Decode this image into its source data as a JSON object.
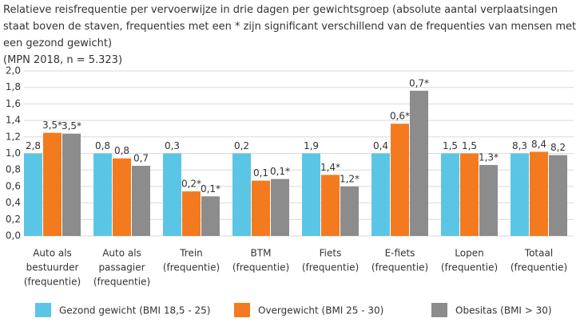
{
  "chart_data": {
    "type": "bar",
    "title": "Relatieve reisfrequentie per vervoerwijze in drie dagen per gewichtsgroep (absolute aantal verplaatsingen staat boven de staven, frequenties met een * zijn significant verschillend van de frequenties van mensen met een gezond gewicht)",
    "subtitle": "(MPN 2018, n = 5.323)",
    "categories": [
      [
        "Auto als",
        "bestuurder",
        "(frequentie)"
      ],
      [
        "Auto als",
        "passagier",
        "(frequentie)"
      ],
      [
        "Trein",
        "(frequentie)"
      ],
      [
        "BTM",
        "(frequentie)"
      ],
      [
        "Fiets",
        "(frequentie)"
      ],
      [
        "E-fiets",
        "(frequentie)"
      ],
      [
        "Lopen",
        "(frequentie)"
      ],
      [
        "Totaal",
        "(frequentie)"
      ]
    ],
    "series": [
      {
        "name": "Gezond gewicht (BMI 18,5 - 25)",
        "color": "#5bc5e6",
        "values": [
          1.0,
          1.0,
          1.0,
          1.0,
          1.0,
          1.0,
          1.0,
          1.0
        ],
        "labels": [
          "2,8",
          "0,8",
          "0,3",
          "0,2",
          "1,9",
          "0,4",
          "1,5",
          "8,3"
        ]
      },
      {
        "name": "Overgewicht (BMI 25 - 30)",
        "color": "#f47a1f",
        "values": [
          1.25,
          0.94,
          0.54,
          0.67,
          0.74,
          1.36,
          1.0,
          1.02
        ],
        "labels": [
          "3,5*",
          "0,8",
          "0,2*",
          "0,1",
          "1,4*",
          "0,6*",
          "1,5",
          "8,4"
        ]
      },
      {
        "name": "Obesitas (BMI > 30)",
        "color": "#8c8c8c",
        "values": [
          1.24,
          0.85,
          0.48,
          0.69,
          0.6,
          1.76,
          0.86,
          0.98
        ],
        "labels": [
          "3,5*",
          "0,7",
          "0,1*",
          "0,1*",
          "1,2*",
          "0,7*",
          "1,3*",
          "8,2"
        ]
      }
    ],
    "ylim": [
      0,
      2
    ],
    "yticks": [
      {
        "value": 0,
        "label": "0,0"
      },
      {
        "value": 0.2,
        "label": "0,2"
      },
      {
        "value": 0.4,
        "label": "0,4"
      },
      {
        "value": 0.6,
        "label": "0,6"
      },
      {
        "value": 0.8,
        "label": "0,8"
      },
      {
        "value": 1,
        "label": "1,0"
      },
      {
        "value": 1.2,
        "label": "1,2"
      },
      {
        "value": 1.4,
        "label": "1,4"
      },
      {
        "value": 1.6,
        "label": "1,6"
      },
      {
        "value": 1.8,
        "label": "1,8"
      },
      {
        "value": 2,
        "label": "2,0"
      }
    ],
    "grid": true
  }
}
